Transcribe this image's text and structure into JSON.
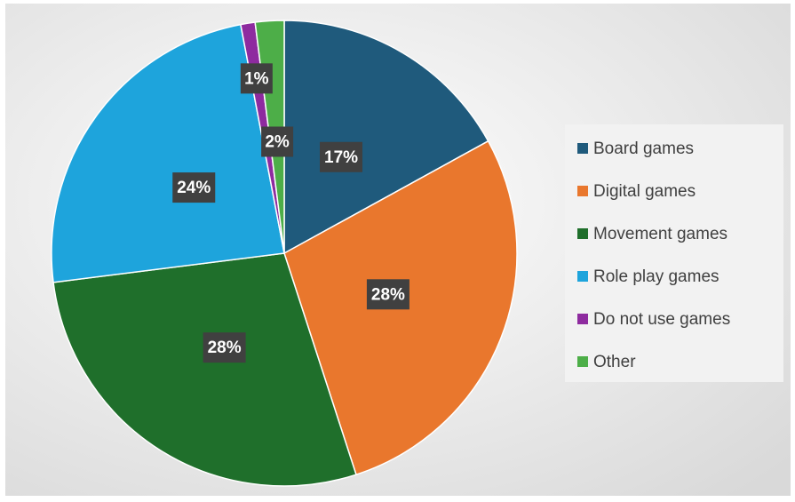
{
  "chart_data": {
    "type": "pie",
    "categories": [
      "Board games",
      "Digital games",
      "Movement games",
      "Role play games",
      "Do not use games",
      "Other"
    ],
    "values": [
      17,
      28,
      28,
      24,
      1,
      2
    ],
    "value_labels": [
      "17%",
      "28%",
      "28%",
      "24%",
      "1%",
      "2%"
    ],
    "colors": [
      "#1f5a7c",
      "#e9772d",
      "#1f6f2b",
      "#1ea4dc",
      "#8e2b9f",
      "#4dae48"
    ],
    "legend": "right"
  }
}
